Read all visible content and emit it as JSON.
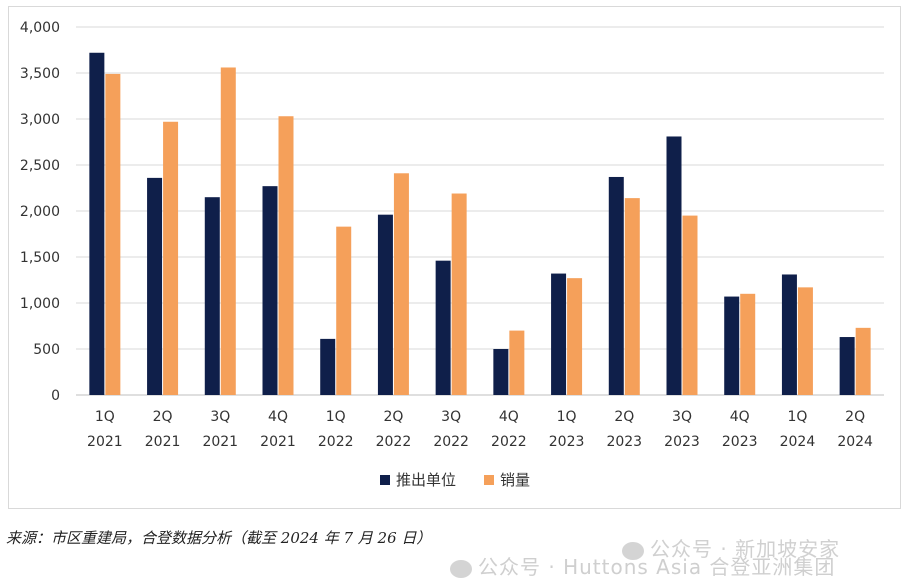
{
  "chart_data": {
    "type": "bar",
    "categories": [
      [
        "1Q",
        "2021"
      ],
      [
        "2Q",
        "2021"
      ],
      [
        "3Q",
        "2021"
      ],
      [
        "4Q",
        "2021"
      ],
      [
        "1Q",
        "2022"
      ],
      [
        "2Q",
        "2022"
      ],
      [
        "3Q",
        "2022"
      ],
      [
        "4Q",
        "2022"
      ],
      [
        "1Q",
        "2023"
      ],
      [
        "2Q",
        "2023"
      ],
      [
        "3Q",
        "2023"
      ],
      [
        "4Q",
        "2023"
      ],
      [
        "1Q",
        "2024"
      ],
      [
        "2Q",
        "2024"
      ]
    ],
    "series": [
      {
        "name": "推出单位",
        "color": "#0f1f4a",
        "values": [
          3720,
          2360,
          2150,
          2270,
          610,
          1960,
          1460,
          500,
          1320,
          2370,
          2810,
          1070,
          1310,
          630
        ]
      },
      {
        "name": "销量",
        "color": "#f5a05a",
        "values": [
          3490,
          2970,
          3560,
          3030,
          1830,
          2410,
          2190,
          700,
          1270,
          2140,
          1950,
          1100,
          1170,
          730
        ]
      }
    ],
    "ylim": [
      0,
      4000
    ],
    "yticks": [
      "0",
      "500",
      "1,000",
      "1,500",
      "2,000",
      "2,500",
      "3,000",
      "3,500",
      "4,000"
    ],
    "ytick_values": [
      0,
      500,
      1000,
      1500,
      2000,
      2500,
      3000,
      3500,
      4000
    ],
    "grid": true,
    "legend_position": "bottom"
  },
  "source_note": "来源：市区重建局，合登数据分析（截至 2024 年 7 月 26 日）",
  "watermark": {
    "line1": "公众号 · 新加坡安家",
    "line2": "公众号 · Huttons Asia 合登亚洲集团",
    "icon": "wechat-icon"
  }
}
